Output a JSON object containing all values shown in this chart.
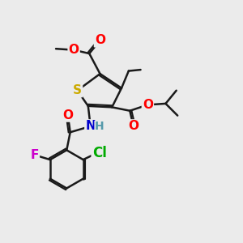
{
  "bg_color": "#ebebeb",
  "bond_color": "#1a1a1a",
  "bond_width": 1.8,
  "atom_colors": {
    "O": "#ff0000",
    "S": "#ccaa00",
    "N": "#0000cc",
    "F": "#cc00cc",
    "Cl": "#00aa00",
    "C": "#1a1a1a",
    "H": "#5599aa"
  },
  "font_size_atom": 11,
  "font_size_small": 9
}
